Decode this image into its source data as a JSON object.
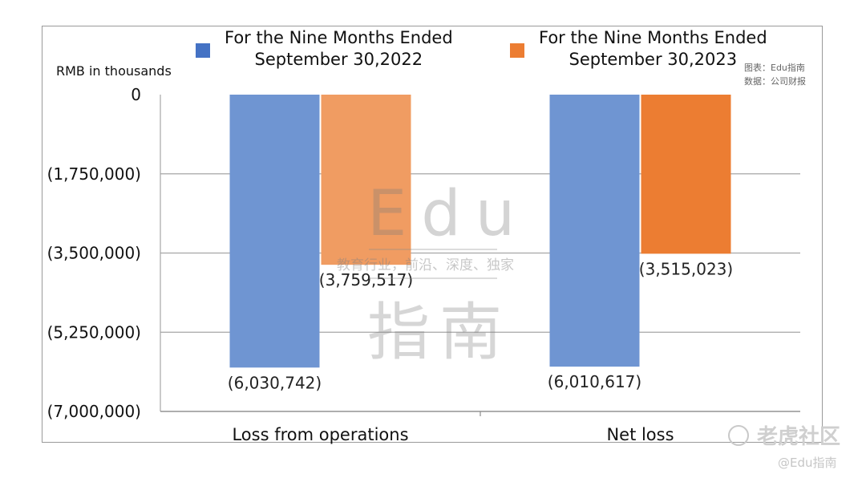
{
  "chart_data": {
    "type": "bar",
    "unit_label": "RMB in thousands",
    "categories": [
      "Loss from operations",
      "Net loss"
    ],
    "series": [
      {
        "name": "For the Nine Months Ended September 30,2022",
        "values": [
          -6030742,
          -6010617
        ],
        "labels": [
          "(6,030,742)",
          "(6,010,617)"
        ],
        "color": "#6f95d2"
      },
      {
        "name": "For the Nine Months Ended September 30,2023",
        "values": [
          -3759517,
          -3515023
        ],
        "labels": [
          "(3,759,517)",
          "(3,515,023)"
        ],
        "colors": [
          "#f09c62",
          "#ec7d32"
        ]
      }
    ],
    "ylim": [
      -7000000,
      0
    ],
    "yticks": [
      0,
      -1750000,
      -3500000,
      -5250000,
      -7000000
    ],
    "ytick_labels": [
      "0",
      "(1,750,000)",
      "(3,500,000)",
      "(5,250,000)",
      "(7,000,000)"
    ],
    "grid": true,
    "legend_position": "top"
  },
  "legend": {
    "s1_line1": "For the Nine Months Ended",
    "s1_line2": "September 30,2022",
    "s2_line1": "For the Nine Months Ended",
    "s2_line2": "September 30,2023"
  },
  "source": {
    "line1": "图表：Edu指南",
    "line2": "数据：公司财报"
  },
  "watermark": {
    "latin": "Edu",
    "tagline": "教育行业，前沿、深度、独家",
    "chinese": "指南"
  },
  "corner": {
    "brand": "老虎社区",
    "handle": "@Edu指南"
  }
}
